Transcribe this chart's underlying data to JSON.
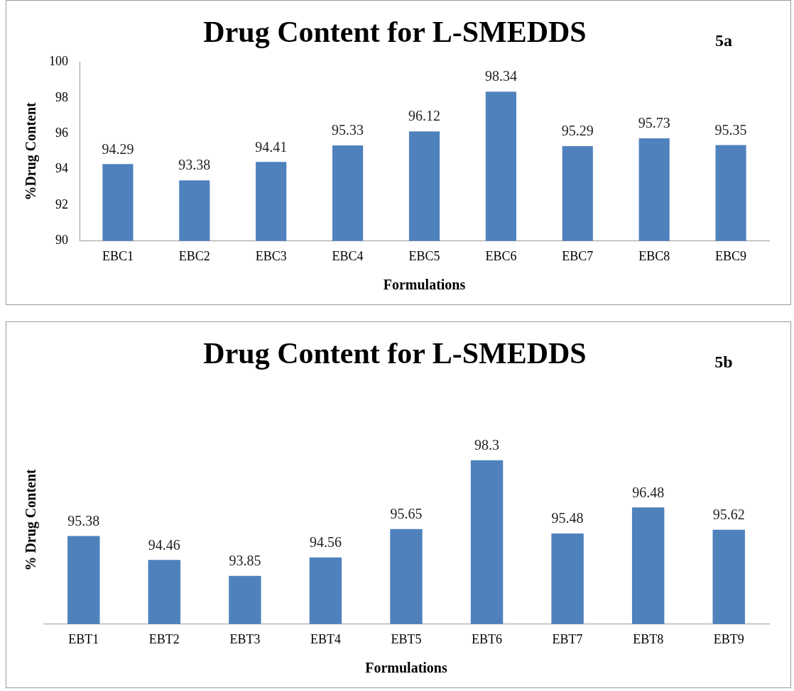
{
  "chart_data": [
    {
      "type": "bar",
      "title": "Drug Content for L-SMEDDS",
      "xlabel": "Formulations",
      "ylabel": "%Drug Content",
      "annotations": [
        "5a"
      ],
      "categories": [
        "EBC1",
        "EBC2",
        "EBC3",
        "EBC4",
        "EBC5",
        "EBC6",
        "EBC7",
        "EBC8",
        "EBC9"
      ],
      "values": [
        94.29,
        93.38,
        94.41,
        95.33,
        96.12,
        98.34,
        95.29,
        95.73,
        95.35
      ],
      "color": "#4f81bd",
      "ylim": [
        90,
        100
      ],
      "yticks": [
        90,
        92,
        94,
        96,
        98,
        100
      ],
      "grid": false,
      "legend": false,
      "data_labels": true
    },
    {
      "type": "bar",
      "title": "Drug Content for L-SMEDDS",
      "xlabel": "Formulations",
      "ylabel": "% Drug Content",
      "annotations": [
        "5b"
      ],
      "categories": [
        "EBT1",
        "EBT2",
        "EBT3",
        "EBT4",
        "EBT5",
        "EBT6",
        "EBT7",
        "EBT8",
        "EBT9"
      ],
      "values": [
        95.38,
        94.46,
        93.85,
        94.56,
        95.65,
        98.3,
        95.48,
        96.48,
        95.62
      ],
      "color": "#4f81bd",
      "grid": false,
      "legend": false,
      "data_labels": true,
      "tick_labels": "x"
    }
  ]
}
